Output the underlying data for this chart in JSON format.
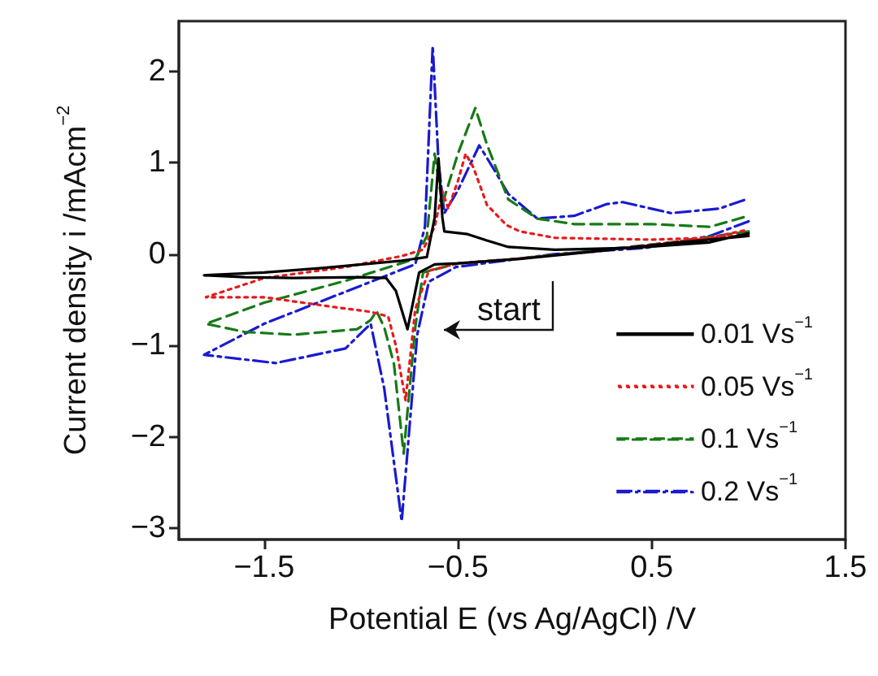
{
  "chart_data": {
    "type": "line",
    "xlabel": "Potential E (vs Ag/AgCl) /V",
    "ylabel": "Current density i /mAcm$^{−2}$",
    "xlim": [
      -1.94,
      1.5
    ],
    "xticks": [
      {
        "value": -1.5,
        "label": "−1.5"
      },
      {
        "value": -0.5,
        "label": "−0.5"
      },
      0.5,
      1.5
    ],
    "ylim": [
      -3.12,
      2.55
    ],
    "yticks": [
      {
        "value": -3,
        "label": "−3"
      },
      {
        "value": -2,
        "label": "−2"
      },
      {
        "value": -1,
        "label": "−1"
      },
      0,
      1,
      2
    ],
    "grid": false,
    "legend": "bottom right",
    "marker": "none",
    "annotations": [
      "start"
    ],
    "series": [
      {
        "name": "0.01 Vs$^{−1}$",
        "color": "#000000",
        "line_style": "solid",
        "x": [
          1.0,
          0.6,
          0.2,
          -0.18,
          -0.5,
          -0.62,
          -0.7,
          -0.76,
          -0.82,
          -0.87,
          -1.0,
          -1.35,
          -1.6,
          -1.81,
          -1.5,
          -1.2,
          -0.79,
          -0.66,
          -0.62,
          -0.6,
          -0.58,
          -0.57,
          -0.45,
          -0.35,
          -0.24,
          0,
          0.4,
          0.8,
          1.0
        ],
        "values": [
          0.2,
          0.12,
          0.03,
          -0.05,
          -0.1,
          -0.11,
          -0.2,
          -0.82,
          -0.4,
          -0.26,
          -0.25,
          -0.26,
          -0.25,
          -0.23,
          -0.2,
          -0.15,
          -0.07,
          -0.03,
          0.4,
          1.05,
          0.4,
          0.25,
          0.22,
          0.15,
          0.08,
          0.05,
          0.07,
          0.13,
          0.23
        ]
      },
      {
        "name": "0.05 Vs$^{−1}$",
        "color": "#e8191c",
        "line_style": "dotted",
        "x": [
          1.0,
          0.6,
          0.2,
          -0.2,
          -0.5,
          -0.65,
          -0.72,
          -0.77,
          -0.82,
          -0.86,
          -0.95,
          -1.13,
          -1.5,
          -1.8,
          -1.5,
          -1.08,
          -0.79,
          -0.68,
          -0.62,
          -0.58,
          -0.55,
          -0.5,
          -0.46,
          -0.42,
          -0.35,
          -0.25,
          -0.18,
          0,
          0.5,
          0.8,
          1.0
        ],
        "values": [
          0.22,
          0.13,
          0.03,
          -0.05,
          -0.1,
          -0.18,
          -0.6,
          -1.6,
          -1.0,
          -0.68,
          -0.63,
          -0.58,
          -0.47,
          -0.47,
          -0.26,
          -0.14,
          -0.02,
          0.05,
          0.3,
          0.69,
          0.5,
          0.8,
          1.1,
          0.95,
          0.54,
          0.32,
          0.25,
          0.18,
          0.16,
          0.18,
          0.27
        ]
      },
      {
        "name": "0.1 Vs$^{−1}$",
        "color": "#157a16",
        "line_style": "dashed",
        "x": [
          1.0,
          0.6,
          0.2,
          -0.2,
          -0.5,
          -0.68,
          -0.72,
          -0.78,
          -0.83,
          -0.88,
          -0.92,
          -0.95,
          -1.02,
          -1.35,
          -1.6,
          -1.8,
          -1.5,
          -1.08,
          -0.72,
          -0.66,
          -0.62,
          -0.58,
          -0.5,
          -0.41,
          -0.35,
          -0.24,
          -0.09,
          0.1,
          0.5,
          0.8,
          1.0
        ],
        "values": [
          0.25,
          0.13,
          0.04,
          -0.05,
          -0.1,
          -0.2,
          -0.8,
          -2.18,
          -1.2,
          -0.8,
          -0.62,
          -0.72,
          -0.82,
          -0.88,
          -0.85,
          -0.76,
          -0.53,
          -0.29,
          -0.05,
          0.2,
          1.1,
          0.55,
          1.1,
          1.6,
          1.2,
          0.6,
          0.39,
          0.33,
          0.33,
          0.3,
          0.42
        ]
      },
      {
        "name": "0.2 Vs$^{−1}$",
        "color": "#1a1ad0",
        "line_style": "dashdot",
        "x": [
          1.0,
          0.8,
          0.47,
          -0.01,
          -0.51,
          -0.65,
          -0.71,
          -0.79,
          -0.88,
          -0.95,
          -1.08,
          -1.44,
          -1.81,
          -1.5,
          -1.08,
          -0.72,
          -0.67,
          -0.63,
          -0.6,
          -0.57,
          -0.5,
          -0.39,
          -0.32,
          -0.24,
          -0.09,
          0.1,
          0.27,
          0.35,
          0.6,
          0.85,
          1.0
        ],
        "values": [
          0.36,
          0.2,
          0.07,
          0,
          -0.14,
          -0.3,
          -0.88,
          -2.92,
          -1.47,
          -0.76,
          -1.03,
          -1.19,
          -1.1,
          -0.76,
          -0.41,
          -0.11,
          0.3,
          2.28,
          1.0,
          0.45,
          0.7,
          1.19,
          0.95,
          0.66,
          0.39,
          0.42,
          0.55,
          0.57,
          0.45,
          0.5,
          0.61
        ]
      }
    ]
  }
}
